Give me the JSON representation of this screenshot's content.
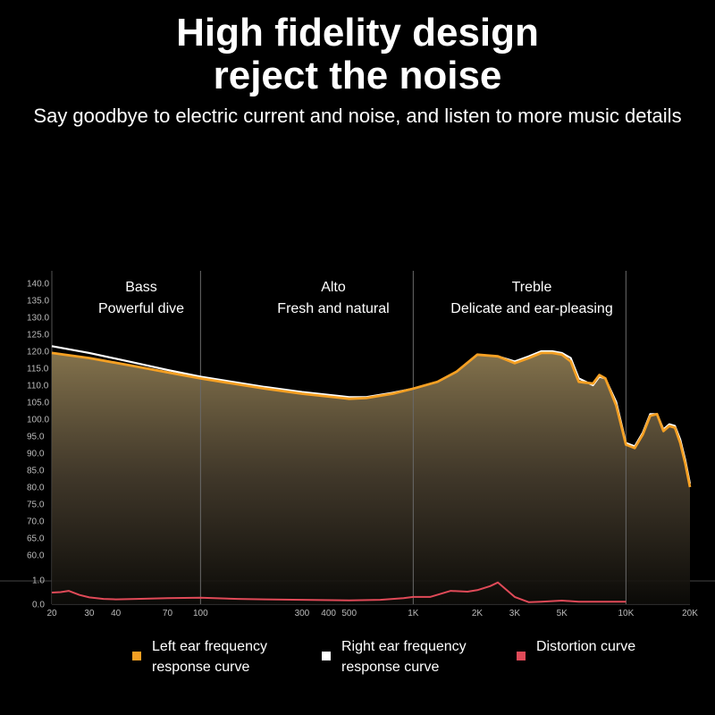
{
  "header": {
    "title_line1": "High fidelity design",
    "title_line2": "reject the noise",
    "subtitle": "Say goodbye to electric current and noise, and listen to more music details"
  },
  "chart_data": {
    "type": "line",
    "xscale": "log",
    "x_ticks": [
      20,
      30,
      40,
      70,
      100,
      300,
      400,
      500,
      1000,
      2000,
      3000,
      5000,
      10000,
      20000
    ],
    "x_tick_labels": [
      "20",
      "30",
      "40",
      "70",
      "100",
      "300",
      "400",
      "500",
      "1K",
      "2K",
      "3K",
      "5K",
      "10K",
      "20K"
    ],
    "y_ticks_upper": [
      60,
      65,
      70,
      75,
      80,
      85,
      90,
      95,
      100,
      105,
      110,
      115,
      120,
      125,
      130,
      135,
      140
    ],
    "y_tick_labels_upper": [
      "60.0",
      "65.0",
      "70.0",
      "75.0",
      "80.0",
      "85.0",
      "90.0",
      "95.0",
      "100.0",
      "105.0",
      "110.0",
      "115.0",
      "120.0",
      "125.0",
      "130.0",
      "135.0",
      "140.0"
    ],
    "y_ticks_lower": [
      0,
      1
    ],
    "y_tick_labels_lower": [
      "0.0",
      "1.0"
    ],
    "regions": [
      {
        "label": "Bass",
        "desc": "Powerful dive"
      },
      {
        "label": "Alto",
        "desc": "Fresh and natural"
      },
      {
        "label": "Treble",
        "desc": "Delicate and ear-pleasing"
      }
    ],
    "region_dividers": [
      100,
      1000,
      10000
    ],
    "series": [
      {
        "name": "Left ear frequency response curve",
        "color": "#f5a023",
        "x": [
          20,
          30,
          50,
          70,
          100,
          200,
          300,
          500,
          600,
          800,
          1000,
          1300,
          1600,
          2000,
          2500,
          3000,
          3500,
          4000,
          4500,
          5000,
          5500,
          6000,
          7000,
          7500,
          8000,
          9000,
          10000,
          11000,
          12000,
          13000,
          14000,
          15000,
          16000,
          17000,
          18000,
          19000,
          20000
        ],
        "y": [
          119.5,
          118,
          115.5,
          113.8,
          112,
          109,
          107.5,
          106,
          106.2,
          107.5,
          109,
          111,
          114,
          119,
          118.5,
          116.5,
          118,
          119.5,
          119.5,
          119,
          117,
          111,
          110.5,
          113,
          112,
          104,
          92.5,
          91.5,
          95.5,
          101,
          101.5,
          96.5,
          98,
          97.5,
          93,
          87,
          80
        ]
      },
      {
        "name": "Right ear frequency response curve",
        "color": "#ffffff",
        "x": [
          20,
          30,
          50,
          70,
          100,
          200,
          300,
          500,
          600,
          800,
          1000,
          1300,
          1600,
          2000,
          2500,
          3000,
          3500,
          4000,
          4500,
          5000,
          5500,
          6000,
          7000,
          7500,
          8000,
          9000,
          10000,
          11000,
          12000,
          13000,
          14000,
          15000,
          16000,
          17000,
          18000,
          19000,
          20000
        ],
        "y": [
          121.5,
          119.5,
          116.5,
          114.5,
          112.5,
          109.5,
          108,
          106.5,
          106.5,
          107.8,
          109,
          111,
          114,
          119,
          118.5,
          117,
          118.5,
          120,
          120,
          119.5,
          118,
          112,
          110,
          112.5,
          112,
          105,
          93,
          92,
          96,
          101.5,
          101.5,
          97,
          98.5,
          98,
          94,
          88,
          81
        ]
      },
      {
        "name": "Distortion curve",
        "color": "#e04a58",
        "x": [
          20,
          22,
          24,
          27,
          30,
          35,
          40,
          50,
          70,
          100,
          150,
          200,
          300,
          500,
          700,
          900,
          1000,
          1200,
          1500,
          1800,
          2000,
          2300,
          2500,
          3000,
          3500,
          4000,
          5000,
          6000,
          8000,
          10000
        ],
        "y": [
          0.48,
          0.5,
          0.55,
          0.38,
          0.28,
          0.22,
          0.2,
          0.22,
          0.25,
          0.27,
          0.22,
          0.2,
          0.18,
          0.16,
          0.18,
          0.25,
          0.3,
          0.3,
          0.55,
          0.52,
          0.58,
          0.75,
          0.9,
          0.3,
          0.08,
          0.1,
          0.15,
          0.1,
          0.1,
          0.1
        ]
      }
    ]
  }
}
